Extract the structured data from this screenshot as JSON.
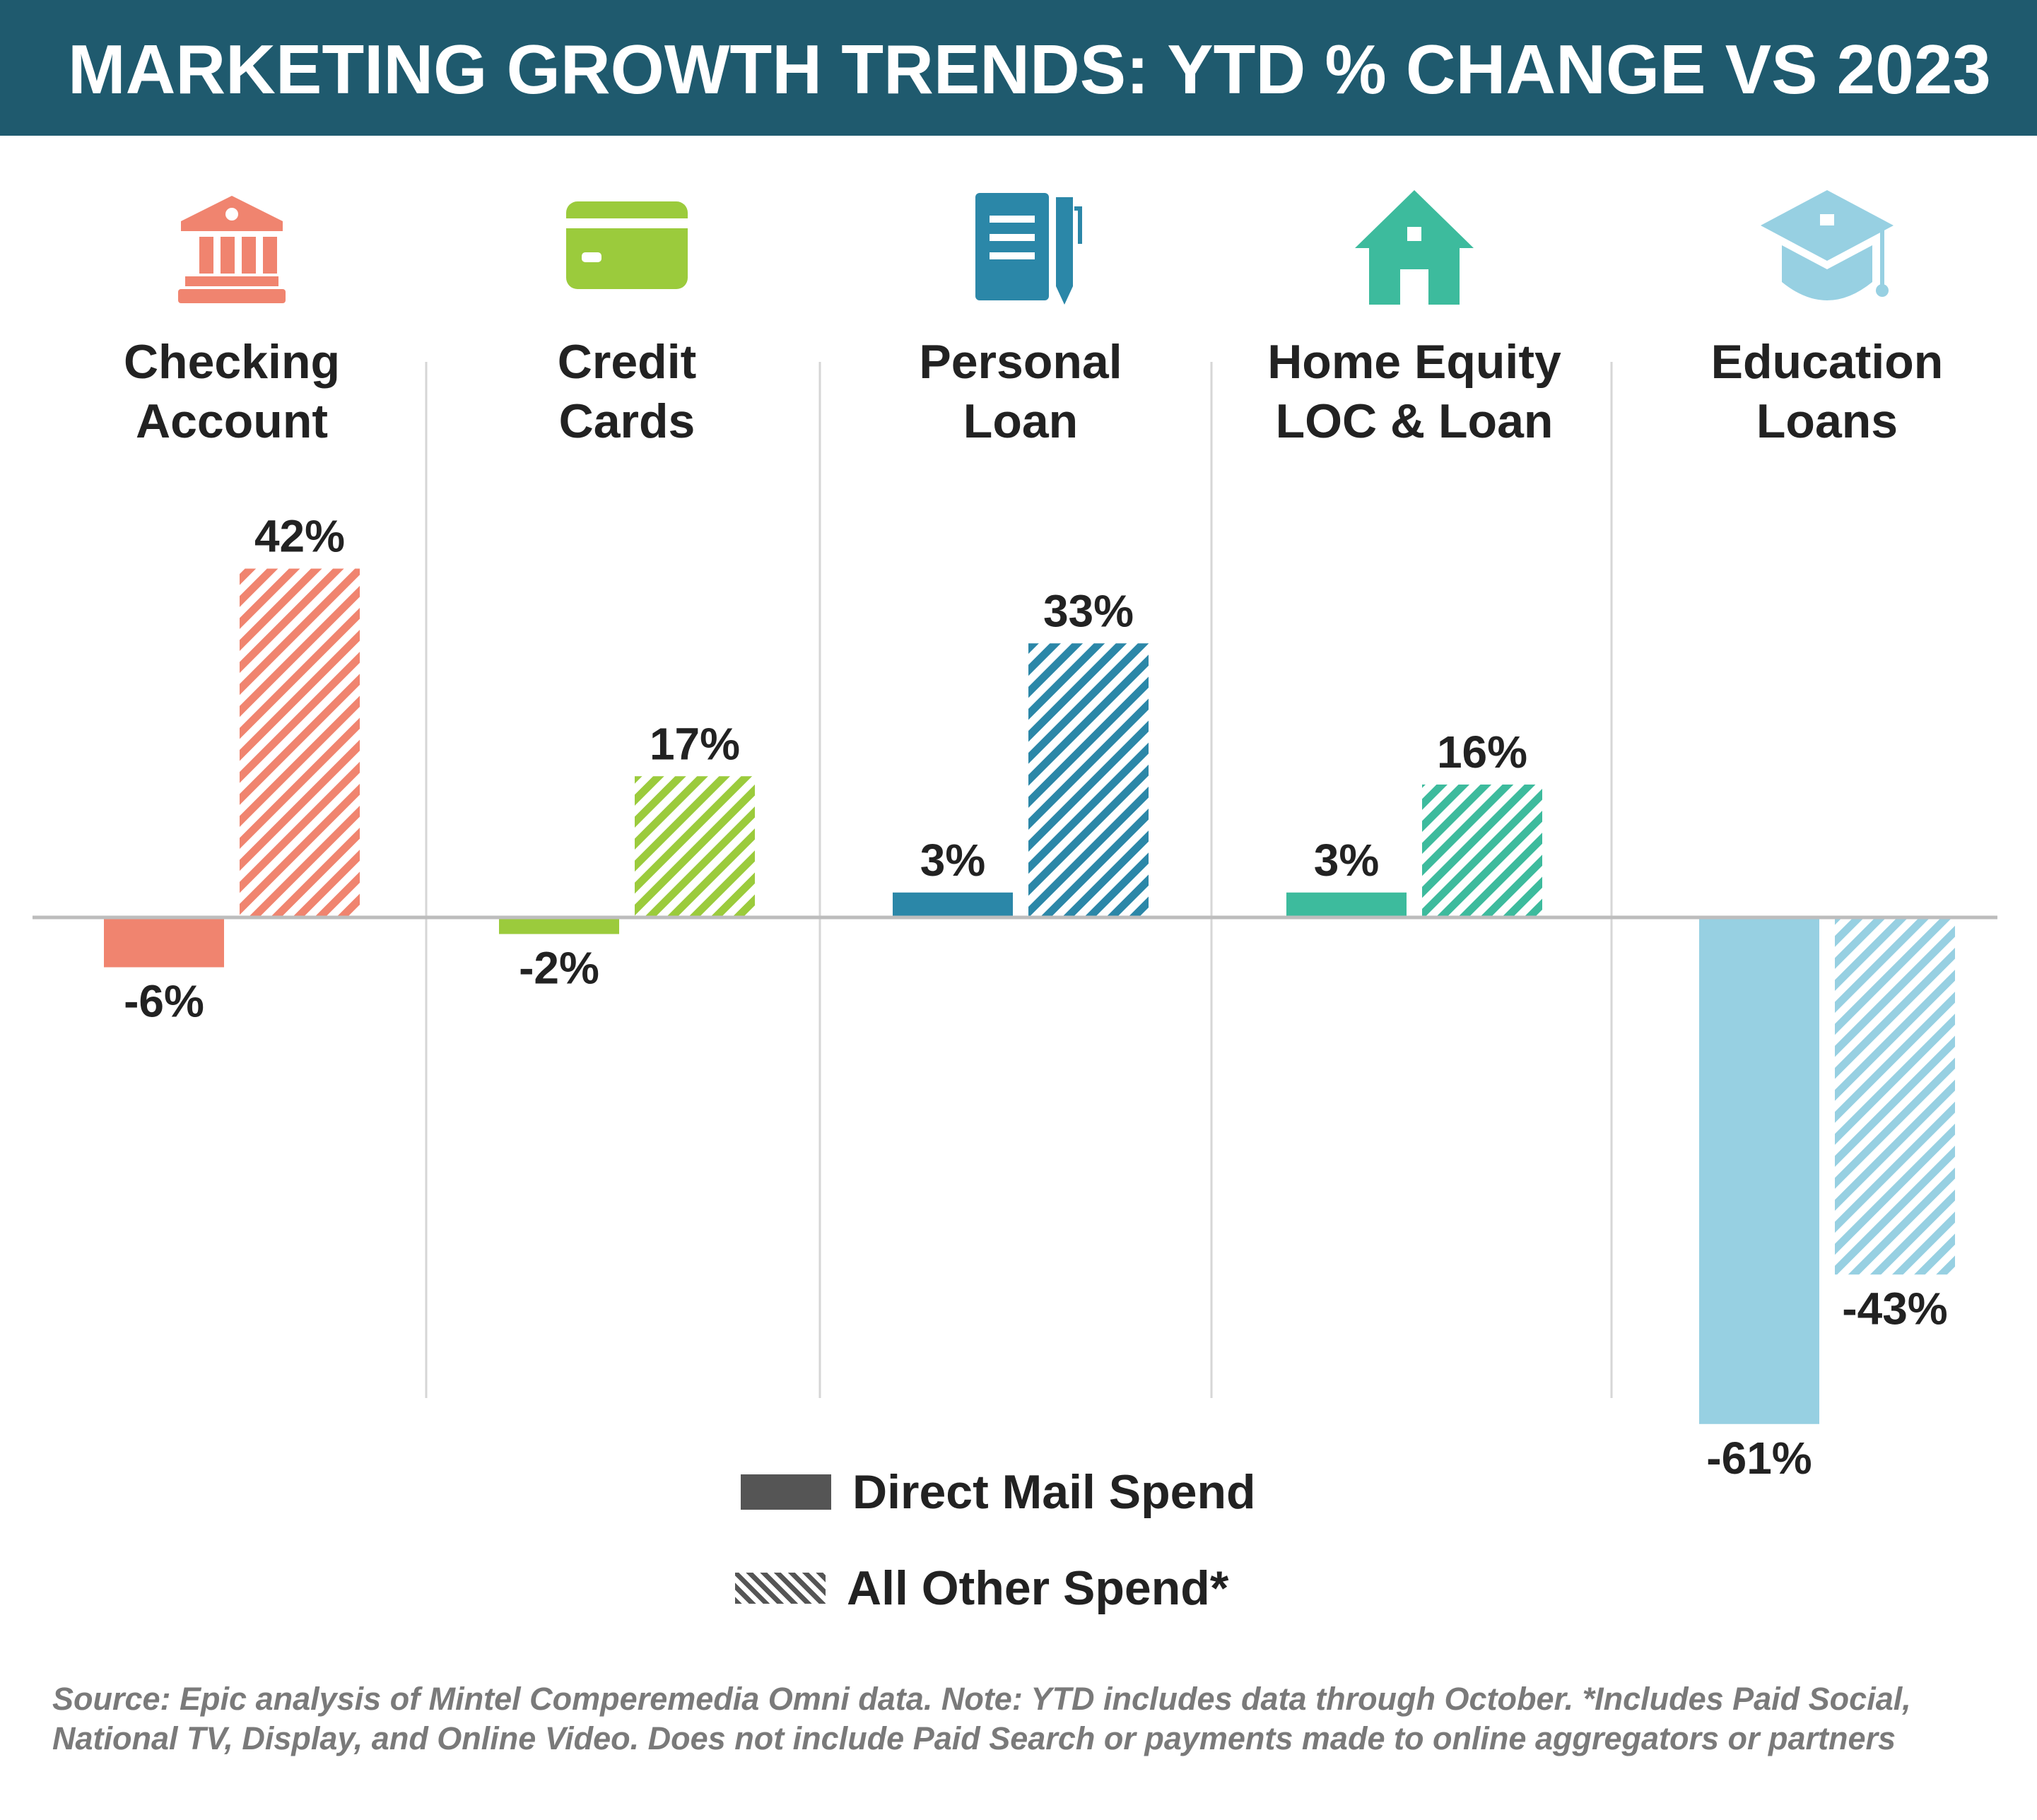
{
  "header": {
    "title": "MARKETING GROWTH TRENDS: YTD % CHANGE VS 2023"
  },
  "legend": {
    "direct_mail_label": "Direct Mail Spend",
    "all_other_label": "All Other Spend*"
  },
  "footnote": {
    "line1": "Source: Epic analysis of Mintel Comperemedia Omni data. Note: YTD includes data through October. *Includes Paid Social,",
    "line2": "National TV, Display, and Online Video. Does not include Paid Search or payments made to online aggregators or partners"
  },
  "chart_data": {
    "type": "bar",
    "categories": [
      {
        "lines": [
          "Checking",
          "Account"
        ],
        "icon": "bank-icon",
        "color": "#f0846f"
      },
      {
        "lines": [
          "Credit",
          "Cards"
        ],
        "icon": "credit-card-icon",
        "color": "#9bcb3c"
      },
      {
        "lines": [
          "Personal",
          "Loan"
        ],
        "icon": "document-pen-icon",
        "color": "#2b87a8"
      },
      {
        "lines": [
          "Home Equity",
          "LOC & Loan"
        ],
        "icon": "house-icon",
        "color": "#3dbb9d"
      },
      {
        "lines": [
          "Education",
          "Loans"
        ],
        "icon": "graduation-cap-icon",
        "color": "#97d0e2"
      }
    ],
    "series": [
      {
        "name": "Direct Mail Spend",
        "style": "solid",
        "values": [
          -6,
          -2,
          3,
          3,
          -61
        ],
        "labels": [
          "-6%",
          "-2%",
          "3%",
          "3%",
          "-61%"
        ]
      },
      {
        "name": "All Other Spend*",
        "style": "hatched",
        "values": [
          42,
          17,
          33,
          16,
          -43
        ],
        "labels": [
          "42%",
          "17%",
          "33%",
          "16%",
          "-43%"
        ]
      }
    ],
    "unit": "%",
    "colors": {
      "zero_line": "#bdbdbd",
      "divider": "#d6d6d6",
      "label_text": "#222222",
      "legend_swatch": "#555555"
    }
  }
}
